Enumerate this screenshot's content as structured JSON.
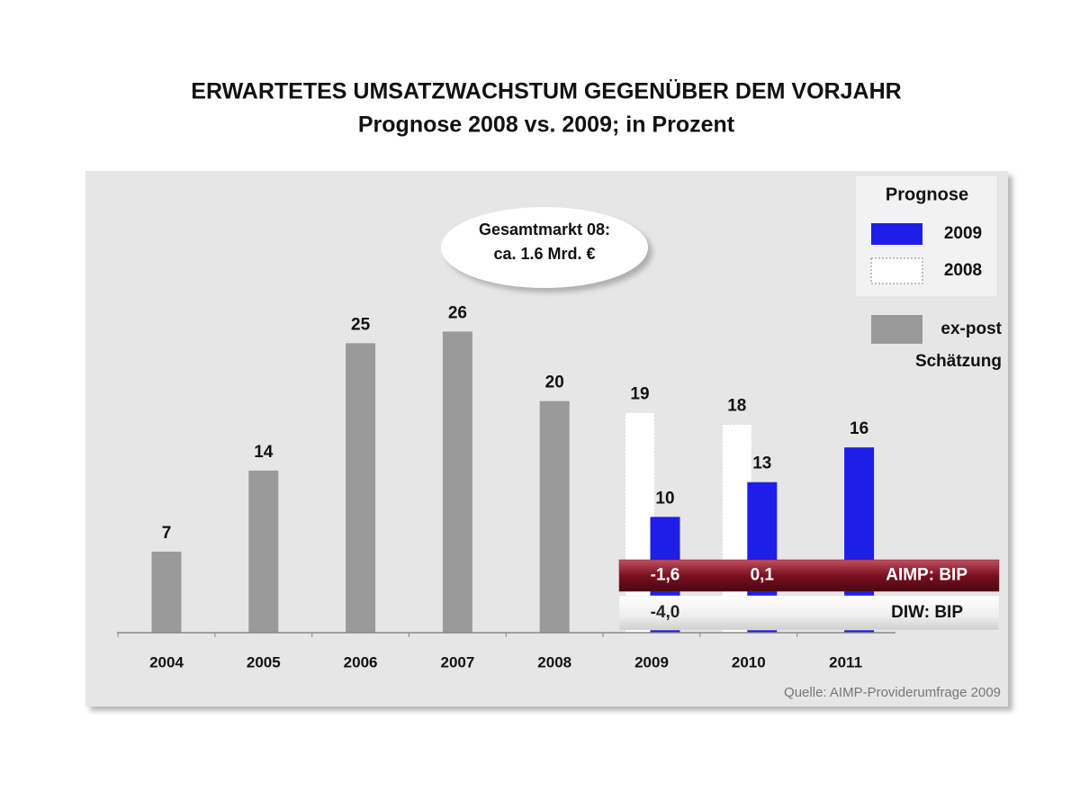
{
  "chart_data": {
    "type": "bar",
    "title": "ERWARTETES UMSATZWACHSTUM GEGENÜBER DEM VORJAHR",
    "subtitle": "Prognose 2008 vs. 2009; in Prozent",
    "annotation": [
      "Gesamtmarkt 08:",
      "ca. 1.6 Mrd. €"
    ],
    "legend_title": "Prognose",
    "source": "Quelle: AIMP-Providerumfrage 2009",
    "categories": [
      "2004",
      "2005",
      "2006",
      "2007",
      "2008",
      "2009",
      "2010",
      "2011"
    ],
    "series": [
      {
        "name": "ex-post Schätzung",
        "color": "#9a9a9a",
        "values": [
          7,
          14,
          25,
          26,
          20,
          null,
          null,
          null
        ]
      },
      {
        "name": "2008",
        "color": "#ffffff",
        "values": [
          null,
          null,
          null,
          null,
          null,
          19,
          18,
          null
        ]
      },
      {
        "name": "2009",
        "color": "#1e1ee6",
        "values": [
          null,
          null,
          null,
          null,
          null,
          10,
          13,
          16
        ]
      }
    ],
    "bands": [
      {
        "name": "AIMP: BIP",
        "color": "#8a1c28",
        "values": [
          null,
          null,
          null,
          null,
          null,
          -1.6,
          0.1,
          null
        ],
        "value_labels": [
          null,
          null,
          null,
          null,
          null,
          "-1,6",
          "0,1",
          null
        ]
      },
      {
        "name": "DIW: BIP",
        "color": "#e8e8e8",
        "values": [
          null,
          null,
          null,
          null,
          null,
          -4.0,
          null,
          null
        ],
        "value_labels": [
          null,
          null,
          null,
          null,
          null,
          "-4,0",
          null,
          null
        ]
      }
    ],
    "ylim": [
      0,
      30
    ]
  }
}
